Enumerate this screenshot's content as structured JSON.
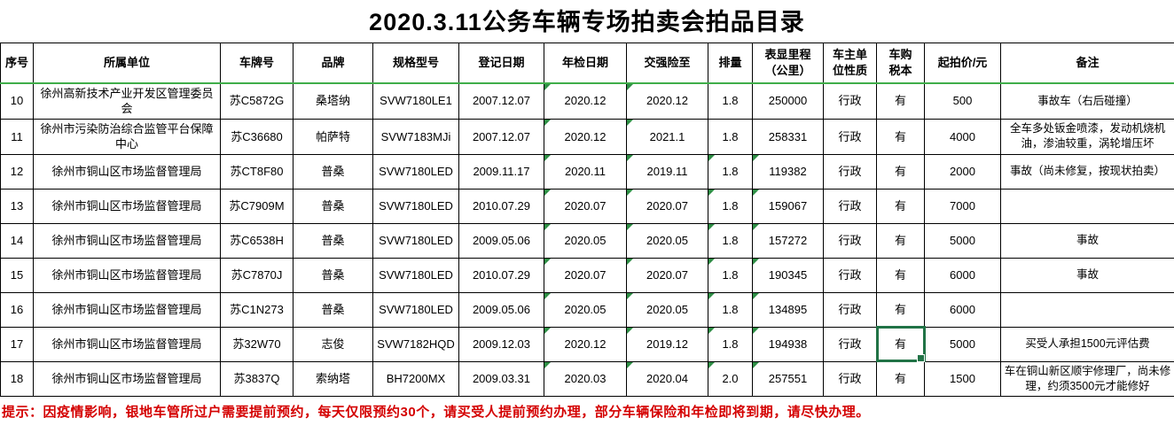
{
  "title": "2020.3.11公务车辆专场拍卖会拍品目录",
  "table": {
    "columns": [
      {
        "key": "index",
        "label": "序号"
      },
      {
        "key": "unit",
        "label": "所属单位"
      },
      {
        "key": "plate",
        "label": "车牌号"
      },
      {
        "key": "brand",
        "label": "品牌"
      },
      {
        "key": "model",
        "label": "规格型号"
      },
      {
        "key": "reg_date",
        "label": "登记日期"
      },
      {
        "key": "inspection_date",
        "label": "年检日期"
      },
      {
        "key": "insurance_until",
        "label": "交强险至"
      },
      {
        "key": "displacement",
        "label": "排量"
      },
      {
        "key": "mileage",
        "label": "表显里程\n（公里）"
      },
      {
        "key": "owner_type",
        "label": "车主单\n位性质"
      },
      {
        "key": "tax_book",
        "label": "车购\n税本"
      },
      {
        "key": "start_price",
        "label": "起拍价/元"
      },
      {
        "key": "remark",
        "label": "备注"
      }
    ],
    "rows": [
      {
        "index": "10",
        "unit": "徐州高新技术产业开发区管理委员会",
        "plate": "苏C5872G",
        "brand": "桑塔纳",
        "model": "SVW7180LE1",
        "reg_date": "2007.12.07",
        "inspection_date": "2020.12",
        "insurance_until": "2020.12",
        "displacement": "1.8",
        "mileage": "250000",
        "owner_type": "行政",
        "tax_book": "有",
        "start_price": "500",
        "remark": "事故车（右后碰撞）",
        "flags": [
          "inspection_date",
          "insurance_until"
        ]
      },
      {
        "index": "11",
        "unit": "徐州市污染防治综合监管平台保障中心",
        "plate": "苏C36680",
        "brand": "帕萨特",
        "model": "SVW7183MJi",
        "reg_date": "2007.12.07",
        "inspection_date": "2020.12",
        "insurance_until": "2021.1",
        "displacement": "1.8",
        "mileage": "258331",
        "owner_type": "行政",
        "tax_book": "有",
        "start_price": "4000",
        "remark": "全车多处钣金喷漆，发动机烧机油，渗油较重，涡轮增压坏",
        "flags": [
          "inspection_date",
          "insurance_until"
        ]
      },
      {
        "index": "12",
        "unit": "徐州市铜山区市场监督管理局",
        "plate": "苏CT8F80",
        "brand": "普桑",
        "model": "SVW7180LED",
        "reg_date": "2009.11.17",
        "inspection_date": "2020.11",
        "insurance_until": "2019.11",
        "displacement": "1.8",
        "mileage": "119382",
        "owner_type": "行政",
        "tax_book": "有",
        "start_price": "2000",
        "remark": "事故（尚未修复，按现状拍卖）",
        "flags": [
          "inspection_date",
          "insurance_until",
          "displacement",
          "mileage"
        ]
      },
      {
        "index": "13",
        "unit": "徐州市铜山区市场监督管理局",
        "plate": "苏C7909M",
        "brand": "普桑",
        "model": "SVW7180LED",
        "reg_date": "2010.07.29",
        "inspection_date": "2020.07",
        "insurance_until": "2020.07",
        "displacement": "1.8",
        "mileage": "159067",
        "owner_type": "行政",
        "tax_book": "有",
        "start_price": "7000",
        "remark": "",
        "flags": [
          "inspection_date",
          "insurance_until",
          "displacement",
          "mileage"
        ]
      },
      {
        "index": "14",
        "unit": "徐州市铜山区市场监督管理局",
        "plate": "苏C6538H",
        "brand": "普桑",
        "model": "SVW7180LED",
        "reg_date": "2009.05.06",
        "inspection_date": "2020.05",
        "insurance_until": "2020.05",
        "displacement": "1.8",
        "mileage": "157272",
        "owner_type": "行政",
        "tax_book": "有",
        "start_price": "5000",
        "remark": "事故",
        "flags": [
          "inspection_date",
          "insurance_until",
          "displacement",
          "mileage"
        ]
      },
      {
        "index": "15",
        "unit": "徐州市铜山区市场监督管理局",
        "plate": "苏C7870J",
        "brand": "普桑",
        "model": "SVW7180LED",
        "reg_date": "2010.07.29",
        "inspection_date": "2020.07",
        "insurance_until": "2020.07",
        "displacement": "1.8",
        "mileage": "190345",
        "owner_type": "行政",
        "tax_book": "有",
        "start_price": "6000",
        "remark": "事故",
        "flags": [
          "inspection_date",
          "insurance_until",
          "displacement",
          "mileage"
        ]
      },
      {
        "index": "16",
        "unit": "徐州市铜山区市场监督管理局",
        "plate": "苏C1N273",
        "brand": "普桑",
        "model": "SVW7180LED",
        "reg_date": "2009.05.06",
        "inspection_date": "2020.05",
        "insurance_until": "2020.05",
        "displacement": "1.8",
        "mileage": "134895",
        "owner_type": "行政",
        "tax_book": "有",
        "start_price": "6000",
        "remark": "",
        "flags": [
          "inspection_date",
          "insurance_until",
          "displacement",
          "mileage"
        ]
      },
      {
        "index": "17",
        "unit": "徐州市铜山区市场监督管理局",
        "plate": "苏32W70",
        "brand": "志俊",
        "model": "SVW7182HQD",
        "reg_date": "2009.12.03",
        "inspection_date": "2020.12",
        "insurance_until": "2019.12",
        "displacement": "1.8",
        "mileage": "194938",
        "owner_type": "行政",
        "tax_book": "有",
        "start_price": "5000",
        "remark": "买受人承担1500元评估费",
        "flags": [
          "inspection_date",
          "insurance_until",
          "displacement",
          "mileage"
        ]
      },
      {
        "index": "18",
        "unit": "徐州市铜山区市场监督管理局",
        "plate": "苏3837Q",
        "brand": "索纳塔",
        "model": "BH7200MX",
        "reg_date": "2009.03.31",
        "inspection_date": "2020.03",
        "insurance_until": "2020.04",
        "displacement": "2.0",
        "mileage": "257551",
        "owner_type": "行政",
        "tax_book": "有",
        "start_price": "1500",
        "remark": "车在铜山新区顺宇修理厂，尚未修理，约须3500元才能修好",
        "flags": [
          "inspection_date",
          "insurance_until",
          "displacement",
          "mileage"
        ]
      }
    ],
    "selected_cell": {
      "row_index": "17",
      "column": "tax_book"
    }
  },
  "footer": {
    "note": "提示：因疫情影响，银地车管所过户需要提前预约，每天仅限预约30个，请买受人提前预约办理，部分车辆保险和年检即将到期，请尽快办理。"
  },
  "colors": {
    "flag_green": "#2f8f46",
    "selection_green": "#217346",
    "range_line_green": "#3fae49",
    "note_red": "#d40000",
    "grid_black": "#000000"
  }
}
